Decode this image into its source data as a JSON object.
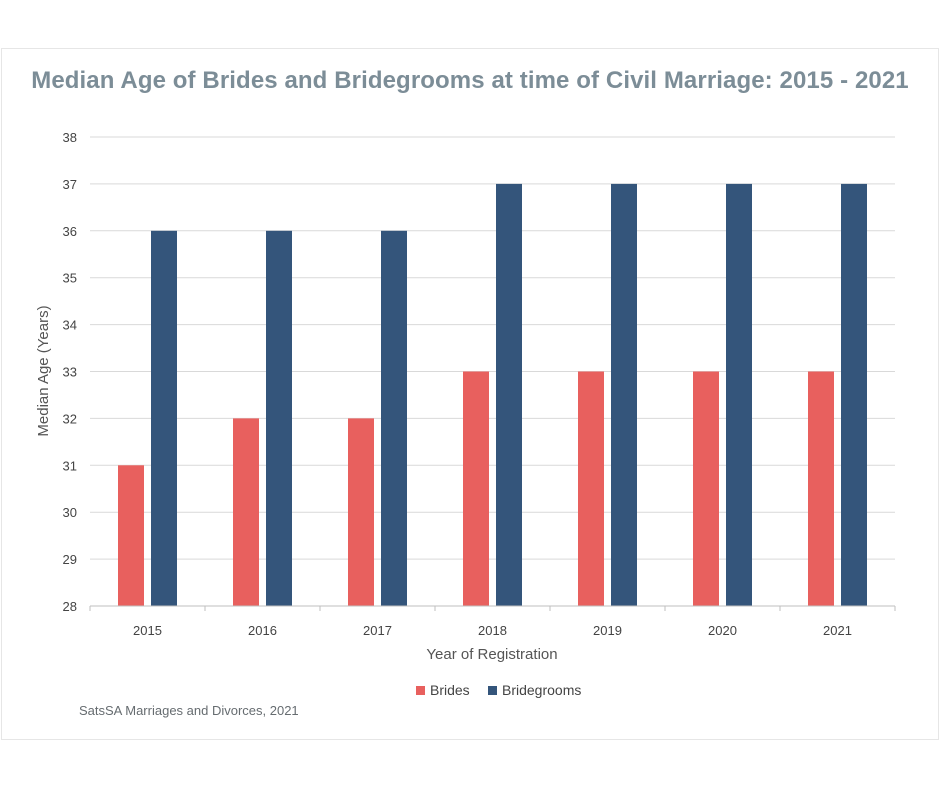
{
  "chart_data": {
    "type": "bar",
    "title": "Median Age of Brides and Bridegrooms at time of Civil Marriage: 2015 - 2021",
    "xlabel": "Year of Registration",
    "ylabel": "Median Age (Years)",
    "categories": [
      "2015",
      "2016",
      "2017",
      "2018",
      "2019",
      "2020",
      "2021"
    ],
    "series": [
      {
        "name": "Brides",
        "color": "#e8605e",
        "values": [
          31,
          32,
          32,
          33,
          33,
          33,
          33
        ]
      },
      {
        "name": "Bridegrooms",
        "color": "#34557b",
        "values": [
          36,
          36,
          36,
          37,
          37,
          37,
          37
        ]
      }
    ],
    "ylim": [
      28,
      38
    ],
    "yticks": [
      28,
      29,
      30,
      31,
      32,
      33,
      34,
      35,
      36,
      37,
      38
    ],
    "grid": true,
    "legend": "bottom"
  },
  "source": "SatsSA Marriages and Divorces, 2021"
}
